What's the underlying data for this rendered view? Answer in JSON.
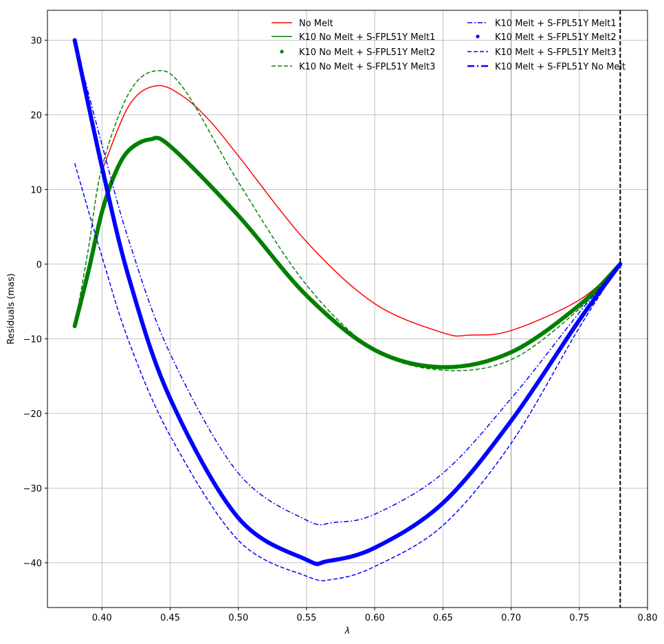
{
  "chart_data": {
    "type": "line",
    "xlabel": "λ",
    "ylabel": "Residuals (mas)",
    "xlim": [
      0.36,
      0.8
    ],
    "ylim": [
      -46,
      34
    ],
    "xticks": [
      0.4,
      0.45,
      0.5,
      0.55,
      0.6,
      0.65,
      0.7,
      0.75,
      0.8
    ],
    "xtick_labels": [
      "0.40",
      "0.45",
      "0.50",
      "0.55",
      "0.60",
      "0.65",
      "0.70",
      "0.75",
      "0.80"
    ],
    "yticks": [
      -40,
      -30,
      -20,
      -10,
      0,
      10,
      20,
      30
    ],
    "ytick_labels": [
      "−40",
      "−30",
      "−20",
      "−10",
      "0",
      "10",
      "20",
      "30"
    ],
    "grid": true,
    "legend_placement": "top-right, two columns",
    "vlines": [
      {
        "x": 0.7,
        "color": "#b0b0b0",
        "style": "solid"
      },
      {
        "x": 0.78,
        "color": "#000000",
        "style": "dashed"
      }
    ],
    "series": [
      {
        "name": "No Melt",
        "color": "#ff0000",
        "style": "solid",
        "width": 1.5,
        "x": [
          0.4,
          0.42,
          0.44,
          0.46,
          0.48,
          0.5,
          0.55,
          0.6,
          0.65,
          0.67,
          0.7,
          0.75,
          0.78
        ],
        "y": [
          12.5,
          21.3,
          23.9,
          22.4,
          19.0,
          14.5,
          3.0,
          -5.3,
          -9.2,
          -9.5,
          -8.9,
          -4.8,
          0.0
        ]
      },
      {
        "name": "K10 No Melt + S-FPL51Y Melt1",
        "color": "#008000",
        "style": "solid",
        "width": 1.5,
        "x": [
          0.38,
          0.39,
          0.4,
          0.41,
          0.42,
          0.435,
          0.45,
          0.5,
          0.55,
          0.6,
          0.65,
          0.7,
          0.75,
          0.78
        ],
        "y": [
          -8.3,
          -1.0,
          7.0,
          12.3,
          15.3,
          16.7,
          15.8,
          6.5,
          -4.2,
          -11.5,
          -13.8,
          -11.8,
          -5.5,
          0.0
        ]
      },
      {
        "name": "K10 No Melt + S-FPL51Y Melt2",
        "color": "#008000",
        "style": "dots",
        "width": 6,
        "x": [
          0.38,
          0.39,
          0.4,
          0.41,
          0.42,
          0.435,
          0.45,
          0.5,
          0.55,
          0.6,
          0.65,
          0.7,
          0.75,
          0.78
        ],
        "y": [
          -8.3,
          -1.0,
          7.0,
          12.3,
          15.3,
          16.7,
          15.8,
          6.5,
          -4.2,
          -11.5,
          -13.8,
          -11.8,
          -5.5,
          0.0
        ]
      },
      {
        "name": "K10 No Melt + S-FPL51Y Melt3",
        "color": "#008000",
        "style": "dashed",
        "width": 1.5,
        "x": [
          0.38,
          0.39,
          0.4,
          0.42,
          0.44,
          0.46,
          0.5,
          0.55,
          0.6,
          0.65,
          0.7,
          0.75,
          0.78
        ],
        "y": [
          -8.3,
          2.0,
          13.0,
          23.0,
          25.9,
          23.5,
          11.0,
          -2.8,
          -11.5,
          -14.2,
          -12.8,
          -6.0,
          0.0
        ]
      },
      {
        "name": "K10 Melt + S-FPL51Y Melt1",
        "color": "#0000ff",
        "style": "dashdot",
        "width": 1.5,
        "x": [
          0.38,
          0.4,
          0.42,
          0.45,
          0.5,
          0.55,
          0.57,
          0.6,
          0.65,
          0.7,
          0.75,
          0.78
        ],
        "y": [
          30.0,
          16.0,
          3.0,
          -12.0,
          -28.0,
          -34.3,
          -34.6,
          -33.5,
          -28.0,
          -18.0,
          -6.5,
          0.0
        ]
      },
      {
        "name": "K10 Melt + S-FPL51Y Melt2",
        "color": "#0000ff",
        "style": "dots",
        "width": 6,
        "x": [
          0.38,
          0.4,
          0.42,
          0.45,
          0.5,
          0.55,
          0.565,
          0.6,
          0.65,
          0.7,
          0.75,
          0.78
        ],
        "y": [
          30.0,
          13.0,
          -2.0,
          -18.0,
          -34.0,
          -39.6,
          -39.8,
          -38.0,
          -32.0,
          -21.0,
          -7.5,
          0.0
        ]
      },
      {
        "name": "K10 Melt + S-FPL51Y Melt3",
        "color": "#0000ff",
        "style": "dashed",
        "width": 1.5,
        "x": [
          0.38,
          0.4,
          0.42,
          0.45,
          0.5,
          0.55,
          0.57,
          0.6,
          0.65,
          0.7,
          0.75,
          0.78
        ],
        "y": [
          13.5,
          1.0,
          -10.5,
          -23.0,
          -37.0,
          -41.8,
          -42.2,
          -40.5,
          -35.0,
          -24.0,
          -8.5,
          0.0
        ]
      },
      {
        "name": "K10 Melt + S-FPL51Y No Melt",
        "color": "#0000ff",
        "style": "dashdot",
        "width": 3,
        "x": [
          0.38,
          0.4,
          0.42,
          0.45,
          0.5,
          0.55,
          0.565,
          0.6,
          0.65,
          0.7,
          0.75,
          0.78
        ],
        "y": [
          30.0,
          13.0,
          -2.0,
          -18.0,
          -34.0,
          -39.6,
          -39.8,
          -38.0,
          -32.0,
          -21.0,
          -7.5,
          0.0
        ]
      }
    ]
  }
}
